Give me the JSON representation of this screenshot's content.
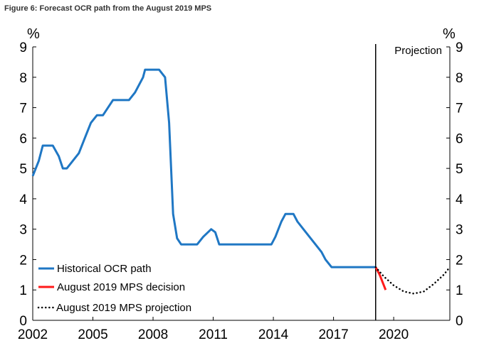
{
  "figure_title": "Figure 6: Forecast OCR path from the August 2019 MPS",
  "colors": {
    "historical": "#1f77c4",
    "decision": "#ff1a1a",
    "projection": "#000000",
    "divider": "#000000"
  },
  "chart_data": {
    "type": "line",
    "title": "Figure 6: Forecast OCR path from the August 2019 MPS",
    "ylabel_left": "%",
    "ylabel_right": "%",
    "annotation": "Projection",
    "xlim": [
      2002,
      2022.8
    ],
    "ylim": [
      0,
      9
    ],
    "x_ticks": [
      2002,
      2005,
      2008,
      2011,
      2014,
      2017,
      2020
    ],
    "x_tick_labels": [
      "2002",
      "2005",
      "2008",
      "2011",
      "2014",
      "2017",
      "2020"
    ],
    "y_ticks": [
      0,
      1,
      2,
      3,
      4,
      5,
      6,
      7,
      8,
      9
    ],
    "y_tick_labels": [
      "0",
      "1",
      "2",
      "3",
      "4",
      "5",
      "6",
      "7",
      "8",
      "9"
    ],
    "projection_start": 2019.1,
    "legend_position": "bottom-left",
    "series": [
      {
        "name": "Historical OCR path",
        "color": "#1f77c4",
        "style": "solid",
        "points": [
          [
            2002.0,
            4.75
          ],
          [
            2002.3,
            5.25
          ],
          [
            2002.5,
            5.75
          ],
          [
            2003.0,
            5.75
          ],
          [
            2003.3,
            5.4
          ],
          [
            2003.5,
            5.0
          ],
          [
            2003.7,
            5.0
          ],
          [
            2004.0,
            5.25
          ],
          [
            2004.3,
            5.5
          ],
          [
            2004.6,
            6.0
          ],
          [
            2004.9,
            6.5
          ],
          [
            2005.2,
            6.75
          ],
          [
            2005.5,
            6.75
          ],
          [
            2006.0,
            7.25
          ],
          [
            2006.8,
            7.25
          ],
          [
            2007.1,
            7.5
          ],
          [
            2007.5,
            8.0
          ],
          [
            2007.6,
            8.25
          ],
          [
            2008.3,
            8.25
          ],
          [
            2008.6,
            8.0
          ],
          [
            2008.8,
            6.5
          ],
          [
            2009.0,
            3.5
          ],
          [
            2009.2,
            2.7
          ],
          [
            2009.4,
            2.5
          ],
          [
            2010.2,
            2.5
          ],
          [
            2010.5,
            2.75
          ],
          [
            2010.9,
            3.0
          ],
          [
            2011.1,
            2.9
          ],
          [
            2011.3,
            2.5
          ],
          [
            2013.9,
            2.5
          ],
          [
            2014.1,
            2.75
          ],
          [
            2014.4,
            3.25
          ],
          [
            2014.6,
            3.5
          ],
          [
            2015.0,
            3.5
          ],
          [
            2015.2,
            3.25
          ],
          [
            2015.5,
            3.0
          ],
          [
            2015.8,
            2.75
          ],
          [
            2016.1,
            2.5
          ],
          [
            2016.4,
            2.25
          ],
          [
            2016.6,
            2.0
          ],
          [
            2016.9,
            1.75
          ],
          [
            2017.2,
            1.75
          ],
          [
            2019.1,
            1.75
          ]
        ]
      },
      {
        "name": "August 2019 MPS decision",
        "color": "#ff1a1a",
        "style": "solid",
        "points": [
          [
            2019.1,
            1.75
          ],
          [
            2019.3,
            1.5
          ],
          [
            2019.6,
            1.0
          ]
        ]
      },
      {
        "name": "August 2019 MPS projection",
        "color": "#000000",
        "style": "dotted",
        "points": [
          [
            2019.1,
            1.75
          ],
          [
            2019.5,
            1.45
          ],
          [
            2020.0,
            1.15
          ],
          [
            2020.5,
            0.95
          ],
          [
            2021.0,
            0.88
          ],
          [
            2021.5,
            0.95
          ],
          [
            2022.0,
            1.2
          ],
          [
            2022.5,
            1.5
          ],
          [
            2022.8,
            1.75
          ]
        ]
      }
    ]
  }
}
